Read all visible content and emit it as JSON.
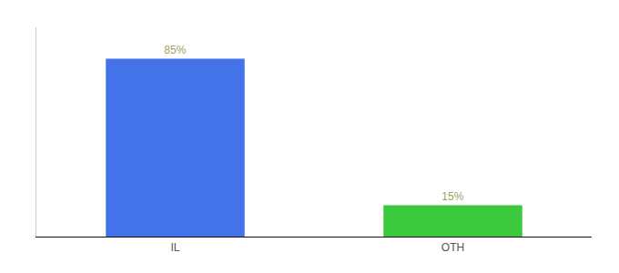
{
  "chart_data": {
    "type": "bar",
    "categories": [
      "IL",
      "OTH"
    ],
    "values": [
      85,
      15
    ],
    "value_labels": [
      "85%",
      "15%"
    ],
    "colors": [
      "#4472e8",
      "#3dc93d"
    ],
    "ylim": [
      0,
      100
    ],
    "data_labels": true,
    "tick_labels": "x",
    "grid": false
  }
}
